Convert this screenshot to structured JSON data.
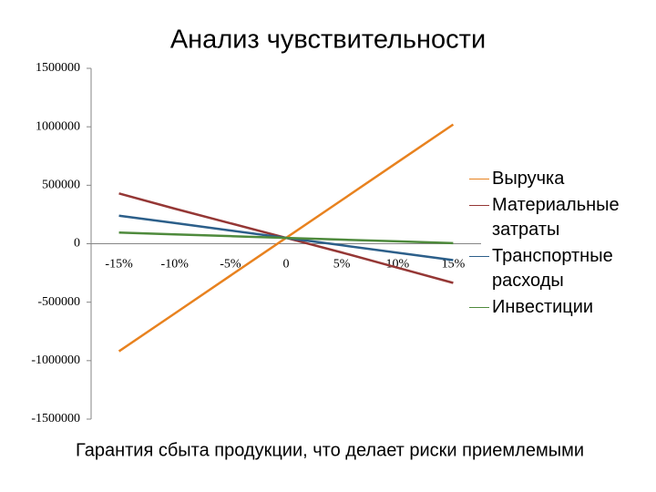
{
  "chart_data": {
    "type": "line",
    "title": "Анализ чувствительности",
    "note": "Гарантия сбыта продукции, что делает риски приемлемыми",
    "categories": [
      "-15%",
      "-10%",
      "-5%",
      "0",
      "5%",
      "10%",
      "15%"
    ],
    "series": [
      {
        "name": "Выручка",
        "color": "#e8821f",
        "values": [
          -920000,
          -597000,
          -273000,
          50000,
          373000,
          697000,
          1020000
        ]
      },
      {
        "name": "Материальные затраты",
        "color": "#953735",
        "values": [
          430000,
          300000,
          175000,
          50000,
          -75000,
          -205000,
          -335000
        ]
      },
      {
        "name": "Транспортные расходы",
        "color": "#2c5f8a",
        "values": [
          240000,
          177000,
          113000,
          50000,
          -13000,
          -77000,
          -140000
        ]
      },
      {
        "name": "Инвестиции",
        "color": "#4e8a3c",
        "values": [
          95000,
          80000,
          65000,
          50000,
          35000,
          20000,
          5000
        ]
      }
    ],
    "ylim": [
      -1500000,
      1500000
    ],
    "yticks": [
      -1500000,
      -1000000,
      -500000,
      0,
      500000,
      1000000,
      1500000
    ],
    "grid": false,
    "legend": "right"
  }
}
